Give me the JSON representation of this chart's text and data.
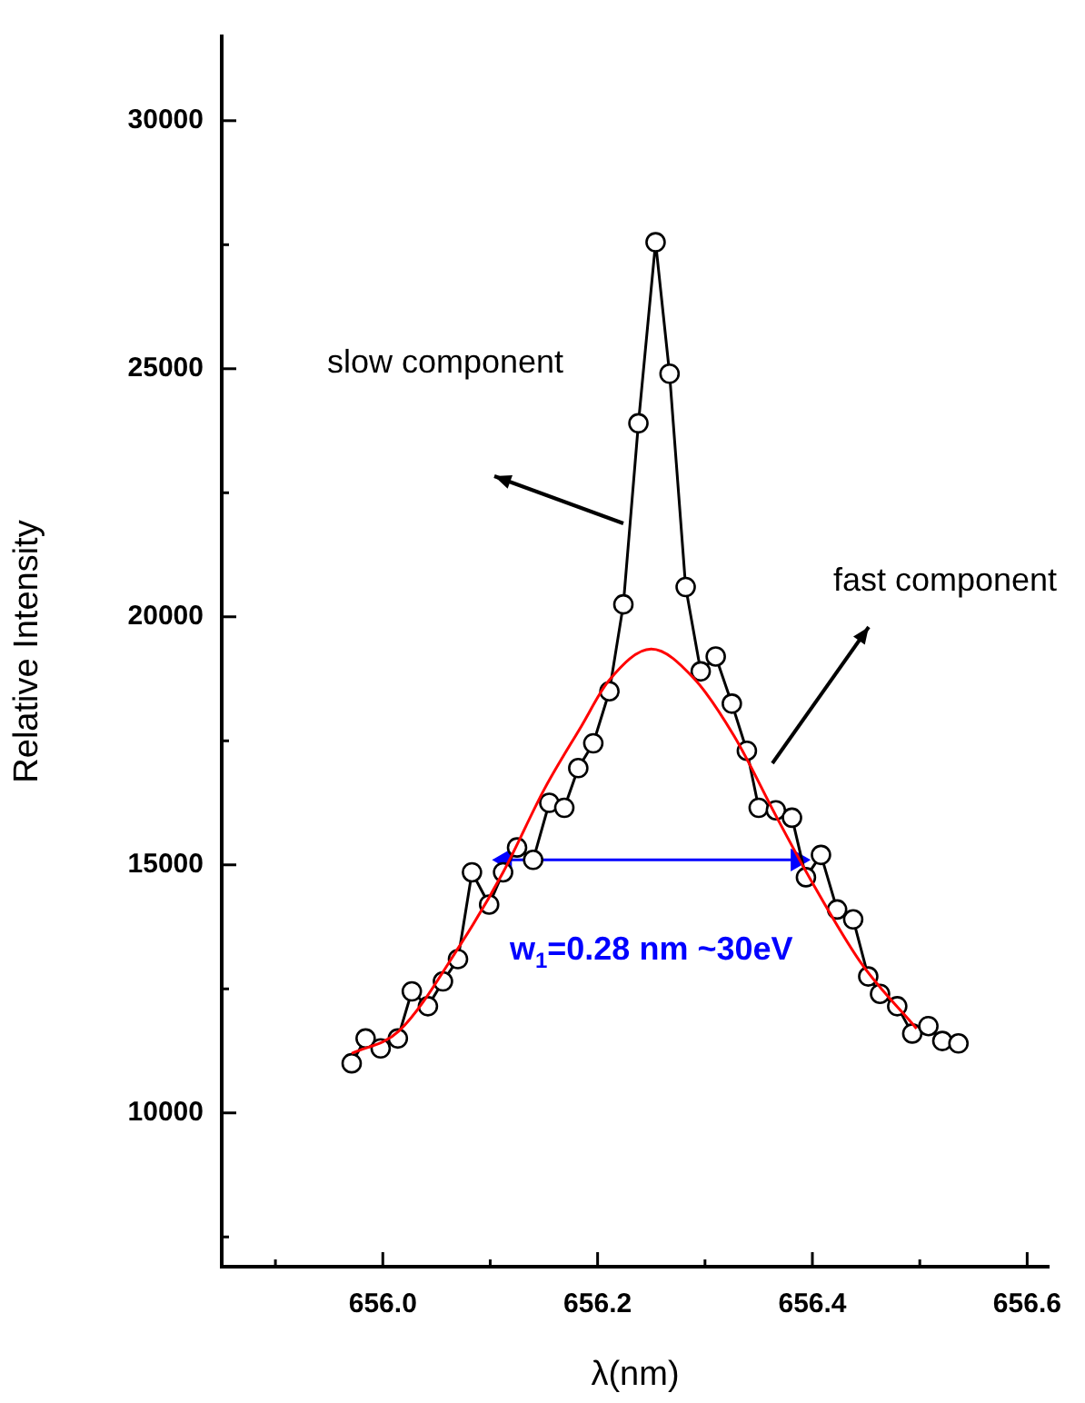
{
  "chart_data": {
    "type": "line",
    "xlabel": "λ(nm)",
    "ylabel": "Relative Intensity",
    "xlim": [
      655.85,
      656.62
    ],
    "ylim": [
      6900,
      31700
    ],
    "xticks": [
      {
        "value": 655.9,
        "label": null
      },
      {
        "value": 656.0,
        "label": "656.0"
      },
      {
        "value": 656.1,
        "label": null
      },
      656.2,
      {
        "value": 656.3,
        "label": null
      },
      656.4,
      {
        "value": 656.5,
        "label": null
      },
      656.6
    ],
    "yticks": [
      {
        "value": 7500,
        "label": null
      },
      10000,
      {
        "value": 12500,
        "label": null
      },
      15000,
      {
        "value": 17500,
        "label": null
      },
      20000,
      {
        "value": 22500,
        "label": null
      },
      25000,
      {
        "value": 27500,
        "label": null
      },
      30000
    ],
    "grid": false,
    "legend": false,
    "series": [
      {
        "color": "#000000",
        "marker": "circle",
        "x": [
          655.971,
          655.984,
          655.998,
          656.014,
          656.027,
          656.042,
          656.056,
          656.07,
          656.083,
          656.099,
          656.112,
          656.125,
          656.14,
          656.155,
          656.169,
          656.182,
          656.196,
          656.211,
          656.224,
          656.238,
          656.254,
          656.267,
          656.282,
          656.296,
          656.31,
          656.325,
          656.339,
          656.35,
          656.366,
          656.381,
          656.394,
          656.408,
          656.423,
          656.438,
          656.452,
          656.463,
          656.479,
          656.493,
          656.508,
          656.521,
          656.536
        ],
        "values": [
          11000,
          11500,
          11300,
          11500,
          12450,
          12150,
          12650,
          13100,
          14850,
          14200,
          14850,
          15350,
          15100,
          16250,
          16150,
          16950,
          17450,
          18500,
          20250,
          23900,
          27550,
          24900,
          20600,
          18900,
          19200,
          18250,
          17300,
          16150,
          16100,
          15950,
          14750,
          15200,
          14100,
          13900,
          12750,
          12400,
          12150,
          11600,
          11750,
          11450,
          11400
        ]
      },
      {
        "color": "#ff0000",
        "marker": "none",
        "x": [
          655.971,
          656.015,
          656.071,
          656.112,
          656.151,
          656.185,
          656.21,
          656.25,
          656.29,
          656.327,
          656.367,
          656.401,
          656.446,
          656.497
        ],
        "values": [
          11200,
          11650,
          13350,
          14850,
          16550,
          17800,
          18700,
          19350,
          18750,
          17600,
          15950,
          14600,
          13000,
          11700
        ]
      },
      {
        "color": "#0000ff",
        "marker": "triangle",
        "x": [
          656.114,
          656.386
        ],
        "values": [
          15100,
          15100
        ]
      }
    ],
    "annotations": [
      "slow component",
      "fast component",
      "w$_{1}$=0.28 nm ~30eV"
    ]
  }
}
